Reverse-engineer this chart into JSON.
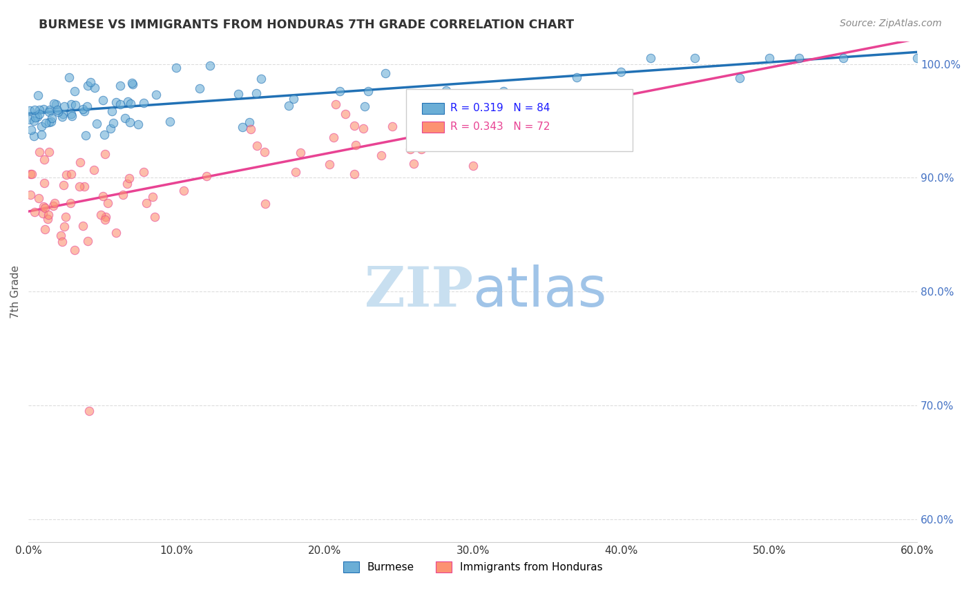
{
  "title": "BURMESE VS IMMIGRANTS FROM HONDURAS 7TH GRADE CORRELATION CHART",
  "source": "Source: ZipAtlas.com",
  "ylabel_label": "7th Grade",
  "xlim": [
    0.0,
    0.6
  ],
  "ylim": [
    0.58,
    1.02
  ],
  "ytick_positions": [
    0.6,
    0.7,
    0.8,
    0.9,
    1.0
  ],
  "xtick_positions": [
    0.0,
    0.1,
    0.2,
    0.3,
    0.4,
    0.5,
    0.6
  ],
  "blue_R": 0.319,
  "blue_N": 84,
  "pink_R": 0.343,
  "pink_N": 72,
  "blue_color": "#6baed6",
  "pink_color": "#fc9272",
  "blue_line_color": "#2171b5",
  "pink_line_color": "#e84393",
  "legend_label_blue": "Burmese",
  "legend_label_pink": "Immigrants from Honduras",
  "watermark_zip": "ZIP",
  "watermark_atlas": "atlas",
  "watermark_color_zip": "#c8dff0",
  "watermark_color_atlas": "#a0c4e8"
}
